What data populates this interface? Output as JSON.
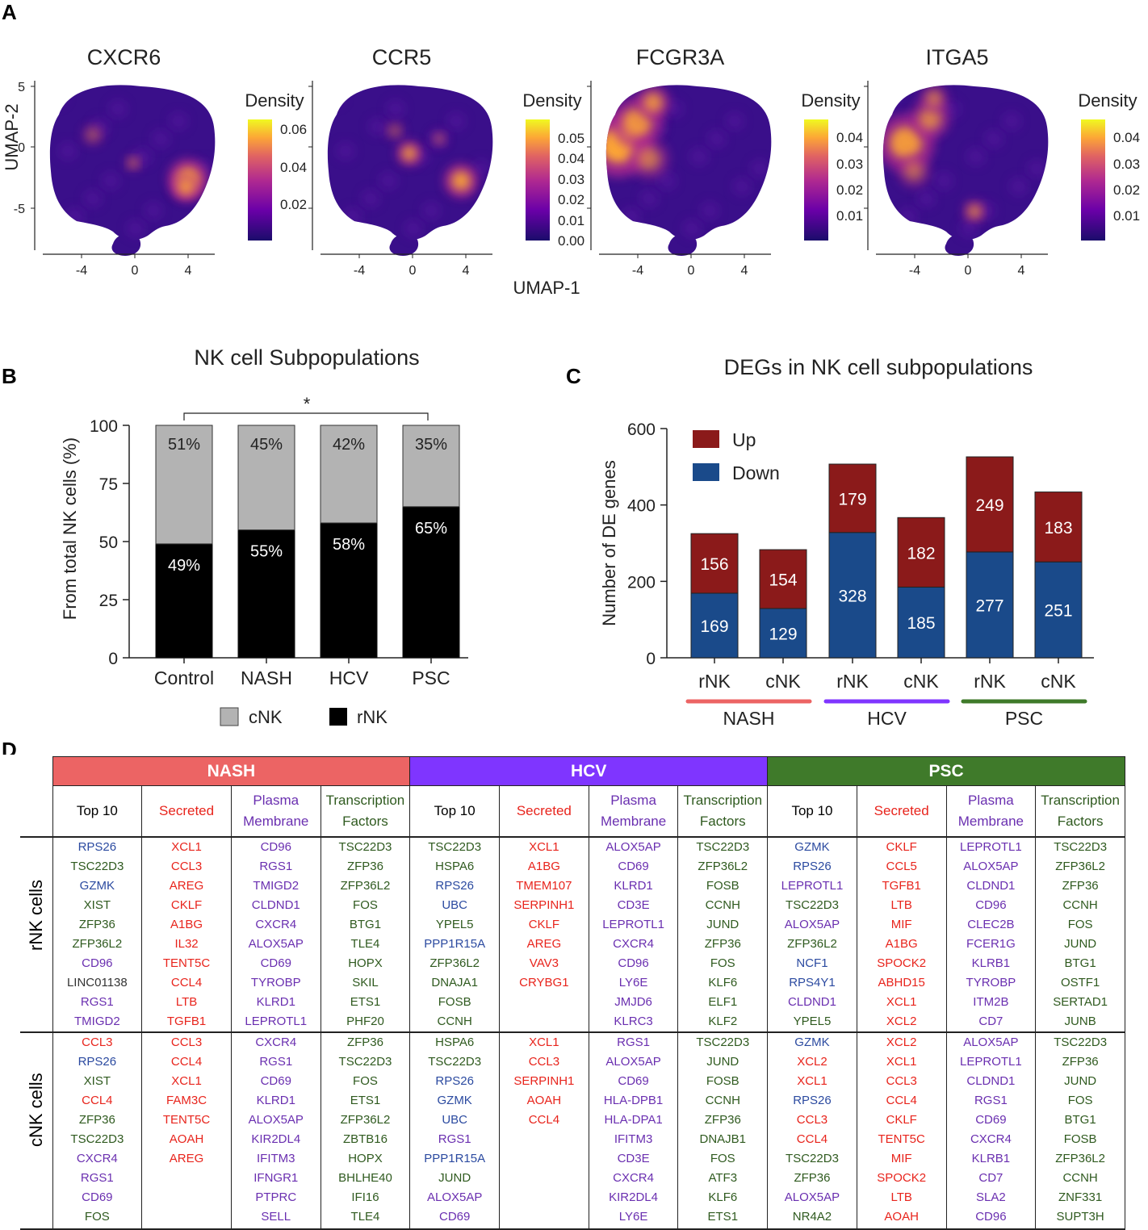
{
  "panel_labels": {
    "a": "A",
    "b": "B",
    "c": "C",
    "d": "D"
  },
  "colors": {
    "nash": "#ec6464",
    "hcv": "#7f35ff",
    "psc": "#3f7a2a",
    "cnk": "#b3b3b3",
    "rnk": "#000000",
    "up": "#8b1a1a",
    "down": "#1a4a8a",
    "gene_blue": "#2b4aa0",
    "gene_green": "#2f5a1f",
    "gene_red": "#e8241c",
    "gene_purple": "#6a2fb0",
    "gene_black": "#333333"
  },
  "chart_data": [
    {
      "type": "heatmap",
      "panel": "A",
      "subtype": "UMAP density",
      "shared_xlabel": "UMAP-1",
      "ylabel": "UMAP-2",
      "x_ticks": [
        "-4",
        "0",
        "4"
      ],
      "y_ticks": [
        "5",
        "0",
        "-5"
      ],
      "legend_title": "Density",
      "plots": [
        {
          "title": "CXCR6",
          "scale_ticks": [
            "0.06",
            "0.04",
            "0.02"
          ],
          "hotspots": "lower-right"
        },
        {
          "title": "CCR5",
          "scale_ticks": [
            "0.05",
            "0.04",
            "0.03",
            "0.02",
            "0.01",
            "0.00"
          ],
          "hotspots": "center and lower-right"
        },
        {
          "title": "FCGR3A",
          "scale_ticks": [
            "0.04",
            "0.03",
            "0.02",
            "0.01"
          ],
          "hotspots": "left"
        },
        {
          "title": "ITGA5",
          "scale_ticks": [
            "0.04",
            "0.03",
            "0.02",
            "0.01"
          ],
          "hotspots": "left and bottom"
        }
      ]
    },
    {
      "type": "bar",
      "panel": "B",
      "stacked": true,
      "title": "NK cell Subpopulations",
      "ylabel": "From total NK cells (%)",
      "ylim": [
        0,
        100
      ],
      "y_ticks": [
        "0",
        "25",
        "50",
        "75",
        "100"
      ],
      "categories": [
        "Control",
        "NASH",
        "HCV",
        "PSC"
      ],
      "series": [
        {
          "name": "rNK",
          "values": [
            49,
            55,
            58,
            65
          ],
          "labels": [
            "49%",
            "55%",
            "58%",
            "65%"
          ]
        },
        {
          "name": "cNK",
          "values": [
            51,
            45,
            42,
            35
          ],
          "labels": [
            "51%",
            "45%",
            "42%",
            "35%"
          ]
        }
      ],
      "legend": [
        "cNK",
        "rNK"
      ],
      "significance": {
        "from": "Control",
        "to": "PSC",
        "mark": "*"
      }
    },
    {
      "type": "bar",
      "panel": "C",
      "stacked": true,
      "title": "DEGs in NK cell subpopulations",
      "ylabel": "Number of DE genes",
      "ylim": [
        0,
        600
      ],
      "y_ticks": [
        "0",
        "200",
        "400",
        "600"
      ],
      "categories": [
        "rNK",
        "cNK",
        "rNK",
        "cNK",
        "rNK",
        "cNK"
      ],
      "groups": [
        "NASH",
        "HCV",
        "PSC"
      ],
      "series": [
        {
          "name": "Down",
          "values": [
            169,
            129,
            328,
            185,
            277,
            251
          ]
        },
        {
          "name": "Up",
          "values": [
            156,
            154,
            179,
            182,
            249,
            183
          ]
        }
      ],
      "legend": [
        "Up",
        "Down"
      ]
    }
  ],
  "table": {
    "groups": [
      "NASH",
      "HCV",
      "PSC"
    ],
    "subheads": [
      {
        "line1": "Top 10",
        "line2": ""
      },
      {
        "line1": "Secreted",
        "line2": ""
      },
      {
        "line1": "Plasma",
        "line2": "Membrane"
      },
      {
        "line1": "Transcription",
        "line2": "Factors"
      }
    ],
    "row_labels": [
      "rNK cells",
      "cNK cells"
    ],
    "rnk": [
      [
        [
          "RPS26",
          "b"
        ],
        [
          "TSC22D3",
          "g"
        ],
        [
          "GZMK",
          "b"
        ],
        [
          "XIST",
          "g"
        ],
        [
          "ZFP36",
          "g"
        ],
        [
          "ZFP36L2",
          "g"
        ],
        [
          "CD96",
          "p"
        ],
        [
          "LINC01138",
          "k"
        ],
        [
          "RGS1",
          "p"
        ],
        [
          "TMIGD2",
          "p"
        ]
      ],
      [
        [
          "XCL1",
          "r"
        ],
        [
          "CCL3",
          "r"
        ],
        [
          "AREG",
          "r"
        ],
        [
          "CKLF",
          "r"
        ],
        [
          "A1BG",
          "r"
        ],
        [
          "IL32",
          "r"
        ],
        [
          "TENT5C",
          "r"
        ],
        [
          "CCL4",
          "r"
        ],
        [
          "LTB",
          "r"
        ],
        [
          "TGFB1",
          "r"
        ]
      ],
      [
        [
          "CD96",
          "p"
        ],
        [
          "RGS1",
          "p"
        ],
        [
          "TMIGD2",
          "p"
        ],
        [
          "CLDND1",
          "p"
        ],
        [
          "CXCR4",
          "p"
        ],
        [
          "ALOX5AP",
          "p"
        ],
        [
          "CD69",
          "p"
        ],
        [
          "TYROBP",
          "p"
        ],
        [
          "KLRD1",
          "p"
        ],
        [
          "LEPROTL1",
          "p"
        ]
      ],
      [
        [
          "TSC22D3",
          "g"
        ],
        [
          "ZFP36",
          "g"
        ],
        [
          "ZFP36L2",
          "g"
        ],
        [
          "FOS",
          "g"
        ],
        [
          "BTG1",
          "g"
        ],
        [
          "TLE4",
          "g"
        ],
        [
          "HOPX",
          "g"
        ],
        [
          "SKIL",
          "g"
        ],
        [
          "ETS1",
          "g"
        ],
        [
          "PHF20",
          "g"
        ]
      ],
      [
        [
          "TSC22D3",
          "g"
        ],
        [
          "HSPA6",
          "g"
        ],
        [
          "RPS26",
          "b"
        ],
        [
          "UBC",
          "b"
        ],
        [
          "YPEL5",
          "g"
        ],
        [
          "PPP1R15A",
          "b"
        ],
        [
          "ZFP36L2",
          "g"
        ],
        [
          "DNAJA1",
          "g"
        ],
        [
          "FOSB",
          "g"
        ],
        [
          "CCNH",
          "g"
        ]
      ],
      [
        [
          "XCL1",
          "r"
        ],
        [
          "A1BG",
          "r"
        ],
        [
          "TMEM107",
          "r"
        ],
        [
          "SERPINH1",
          "r"
        ],
        [
          "CKLF",
          "r"
        ],
        [
          "AREG",
          "r"
        ],
        [
          "VAV3",
          "r"
        ],
        [
          "CRYBG1",
          "r"
        ]
      ],
      [
        [
          "ALOX5AP",
          "p"
        ],
        [
          "CD69",
          "p"
        ],
        [
          "KLRD1",
          "p"
        ],
        [
          "CD3E",
          "p"
        ],
        [
          "LEPROTL1",
          "p"
        ],
        [
          "CXCR4",
          "p"
        ],
        [
          "CD96",
          "p"
        ],
        [
          "LY6E",
          "p"
        ],
        [
          "JMJD6",
          "p"
        ],
        [
          "KLRC3",
          "p"
        ]
      ],
      [
        [
          "TSC22D3",
          "g"
        ],
        [
          "ZFP36L2",
          "g"
        ],
        [
          "FOSB",
          "g"
        ],
        [
          "CCNH",
          "g"
        ],
        [
          "JUND",
          "g"
        ],
        [
          "ZFP36",
          "g"
        ],
        [
          "FOS",
          "g"
        ],
        [
          "KLF6",
          "g"
        ],
        [
          "ELF1",
          "g"
        ],
        [
          "KLF2",
          "g"
        ]
      ],
      [
        [
          "GZMK",
          "b"
        ],
        [
          "RPS26",
          "b"
        ],
        [
          "LEPROTL1",
          "p"
        ],
        [
          "TSC22D3",
          "g"
        ],
        [
          "ALOX5AP",
          "p"
        ],
        [
          "ZFP36L2",
          "g"
        ],
        [
          "NCF1",
          "b"
        ],
        [
          "RPS4Y1",
          "b"
        ],
        [
          "CLDND1",
          "p"
        ],
        [
          "YPEL5",
          "g"
        ]
      ],
      [
        [
          "CKLF",
          "r"
        ],
        [
          "CCL5",
          "r"
        ],
        [
          "TGFB1",
          "r"
        ],
        [
          "LTB",
          "r"
        ],
        [
          "MIF",
          "r"
        ],
        [
          "A1BG",
          "r"
        ],
        [
          "SPOCK2",
          "r"
        ],
        [
          "ABHD15",
          "r"
        ],
        [
          "XCL1",
          "r"
        ],
        [
          "XCL2",
          "r"
        ]
      ],
      [
        [
          "LEPROTL1",
          "p"
        ],
        [
          "ALOX5AP",
          "p"
        ],
        [
          "CLDND1",
          "p"
        ],
        [
          "CD96",
          "p"
        ],
        [
          "CLEC2B",
          "p"
        ],
        [
          "FCER1G",
          "p"
        ],
        [
          "KLRB1",
          "p"
        ],
        [
          "TYROBP",
          "p"
        ],
        [
          "ITM2B",
          "p"
        ],
        [
          "CD7",
          "p"
        ]
      ],
      [
        [
          "TSC22D3",
          "g"
        ],
        [
          "ZFP36L2",
          "g"
        ],
        [
          "ZFP36",
          "g"
        ],
        [
          "CCNH",
          "g"
        ],
        [
          "FOS",
          "g"
        ],
        [
          "JUND",
          "g"
        ],
        [
          "BTG1",
          "g"
        ],
        [
          "OSTF1",
          "g"
        ],
        [
          "SERTAD1",
          "g"
        ],
        [
          "JUNB",
          "g"
        ]
      ]
    ],
    "cnk": [
      [
        [
          "CCL3",
          "r"
        ],
        [
          "RPS26",
          "b"
        ],
        [
          "XIST",
          "g"
        ],
        [
          "CCL4",
          "r"
        ],
        [
          "ZFP36",
          "g"
        ],
        [
          "TSC22D3",
          "g"
        ],
        [
          "CXCR4",
          "p"
        ],
        [
          "RGS1",
          "p"
        ],
        [
          "CD69",
          "p"
        ],
        [
          "FOS",
          "g"
        ]
      ],
      [
        [
          "CCL3",
          "r"
        ],
        [
          "CCL4",
          "r"
        ],
        [
          "XCL1",
          "r"
        ],
        [
          "FAM3C",
          "r"
        ],
        [
          "TENT5C",
          "r"
        ],
        [
          "AOAH",
          "r"
        ],
        [
          "AREG",
          "r"
        ]
      ],
      [
        [
          "CXCR4",
          "p"
        ],
        [
          "RGS1",
          "p"
        ],
        [
          "CD69",
          "p"
        ],
        [
          "KLRD1",
          "p"
        ],
        [
          "ALOX5AP",
          "p"
        ],
        [
          "KIR2DL4",
          "p"
        ],
        [
          "IFITM3",
          "p"
        ],
        [
          "IFNGR1",
          "p"
        ],
        [
          "PTPRC",
          "p"
        ],
        [
          "SELL",
          "p"
        ]
      ],
      [
        [
          "ZFP36",
          "g"
        ],
        [
          "TSC22D3",
          "g"
        ],
        [
          "FOS",
          "g"
        ],
        [
          "ETS1",
          "g"
        ],
        [
          "ZFP36L2",
          "g"
        ],
        [
          "ZBTB16",
          "g"
        ],
        [
          "HOPX",
          "g"
        ],
        [
          "BHLHE40",
          "g"
        ],
        [
          "IFI16",
          "g"
        ],
        [
          "TLE4",
          "g"
        ]
      ],
      [
        [
          "HSPA6",
          "g"
        ],
        [
          "TSC22D3",
          "g"
        ],
        [
          "RPS26",
          "b"
        ],
        [
          "GZMK",
          "b"
        ],
        [
          "UBC",
          "b"
        ],
        [
          "RGS1",
          "p"
        ],
        [
          "PPP1R15A",
          "b"
        ],
        [
          "JUND",
          "g"
        ],
        [
          "ALOX5AP",
          "p"
        ],
        [
          "CD69",
          "p"
        ]
      ],
      [
        [
          "XCL1",
          "r"
        ],
        [
          "CCL3",
          "r"
        ],
        [
          "SERPINH1",
          "r"
        ],
        [
          "AOAH",
          "r"
        ],
        [
          "CCL4",
          "r"
        ]
      ],
      [
        [
          "RGS1",
          "p"
        ],
        [
          "ALOX5AP",
          "p"
        ],
        [
          "CD69",
          "p"
        ],
        [
          "HLA-DPB1",
          "p"
        ],
        [
          "HLA-DPA1",
          "p"
        ],
        [
          "IFITM3",
          "p"
        ],
        [
          "CD3E",
          "p"
        ],
        [
          "CXCR4",
          "p"
        ],
        [
          "KIR2DL4",
          "p"
        ],
        [
          "LY6E",
          "p"
        ]
      ],
      [
        [
          "TSC22D3",
          "g"
        ],
        [
          "JUND",
          "g"
        ],
        [
          "FOSB",
          "g"
        ],
        [
          "CCNH",
          "g"
        ],
        [
          "ZFP36",
          "g"
        ],
        [
          "DNAJB1",
          "g"
        ],
        [
          "FOS",
          "g"
        ],
        [
          "ATF3",
          "g"
        ],
        [
          "KLF6",
          "g"
        ],
        [
          "ETS1",
          "g"
        ]
      ],
      [
        [
          "GZMK",
          "b"
        ],
        [
          "XCL2",
          "r"
        ],
        [
          "XCL1",
          "r"
        ],
        [
          "RPS26",
          "b"
        ],
        [
          "CCL3",
          "r"
        ],
        [
          "CCL4",
          "r"
        ],
        [
          "TSC22D3",
          "g"
        ],
        [
          "ZFP36",
          "g"
        ],
        [
          "ALOX5AP",
          "p"
        ],
        [
          "NR4A2",
          "g"
        ]
      ],
      [
        [
          "XCL2",
          "r"
        ],
        [
          "XCL1",
          "r"
        ],
        [
          "CCL3",
          "r"
        ],
        [
          "CCL4",
          "r"
        ],
        [
          "CKLF",
          "r"
        ],
        [
          "TENT5C",
          "r"
        ],
        [
          "MIF",
          "r"
        ],
        [
          "SPOCK2",
          "r"
        ],
        [
          "LTB",
          "r"
        ],
        [
          "AOAH",
          "r"
        ]
      ],
      [
        [
          "ALOX5AP",
          "p"
        ],
        [
          "LEPROTL1",
          "p"
        ],
        [
          "CLDND1",
          "p"
        ],
        [
          "RGS1",
          "p"
        ],
        [
          "CD69",
          "p"
        ],
        [
          "CXCR4",
          "p"
        ],
        [
          "KLRB1",
          "p"
        ],
        [
          "CD7",
          "p"
        ],
        [
          "SLA2",
          "p"
        ],
        [
          "CD96",
          "p"
        ]
      ],
      [
        [
          "TSC22D3",
          "g"
        ],
        [
          "ZFP36",
          "g"
        ],
        [
          "JUND",
          "g"
        ],
        [
          "FOS",
          "g"
        ],
        [
          "BTG1",
          "g"
        ],
        [
          "FOSB",
          "g"
        ],
        [
          "ZFP36L2",
          "g"
        ],
        [
          "CCNH",
          "g"
        ],
        [
          "ZNF331",
          "g"
        ],
        [
          "SUPT3H",
          "g"
        ]
      ]
    ]
  }
}
